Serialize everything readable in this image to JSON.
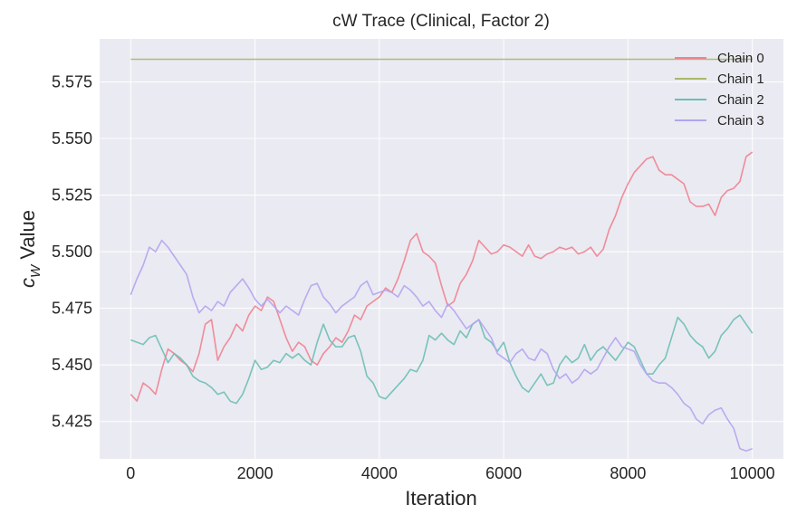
{
  "chart_data": {
    "type": "line",
    "title": "cW Trace (Clinical, Factor 2)",
    "xlabel": "Iteration",
    "ylabel_main": "c",
    "ylabel_sub": "W",
    "ylabel_rest": " Value",
    "xlim": [
      -500,
      10500
    ],
    "ylim": [
      5.4085,
      5.594
    ],
    "xticks": [
      0,
      2000,
      4000,
      6000,
      8000,
      10000
    ],
    "xtick_labels": [
      "0",
      "2000",
      "4000",
      "6000",
      "8000",
      "10000"
    ],
    "yticks": [
      5.425,
      5.45,
      5.475,
      5.5,
      5.525,
      5.55,
      5.575
    ],
    "ytick_labels": [
      "5.425",
      "5.450",
      "5.475",
      "5.500",
      "5.525",
      "5.550",
      "5.575"
    ],
    "grid": true,
    "legend_position": "top-right",
    "series": [
      {
        "name": "Chain 0",
        "color": "#f0828f",
        "x": [
          0,
          100,
          200,
          300,
          400,
          500,
          600,
          700,
          800,
          900,
          1000,
          1100,
          1200,
          1300,
          1400,
          1500,
          1600,
          1700,
          1800,
          1900,
          2000,
          2100,
          2200,
          2300,
          2400,
          2500,
          2600,
          2700,
          2800,
          2900,
          3000,
          3100,
          3200,
          3300,
          3400,
          3500,
          3600,
          3700,
          3800,
          3900,
          4000,
          4100,
          4200,
          4300,
          4400,
          4500,
          4600,
          4700,
          4800,
          4900,
          5000,
          5100,
          5200,
          5300,
          5400,
          5500,
          5600,
          5700,
          5800,
          5900,
          6000,
          6100,
          6200,
          6300,
          6400,
          6500,
          6600,
          6700,
          6800,
          6900,
          7000,
          7100,
          7200,
          7300,
          7400,
          7500,
          7600,
          7700,
          7800,
          7900,
          8000,
          8100,
          8200,
          8300,
          8400,
          8500,
          8600,
          8700,
          8800,
          8900,
          9000,
          9100,
          9200,
          9300,
          9400,
          9500,
          9600,
          9700,
          9800,
          9900,
          10000
        ],
        "y": [
          5.437,
          5.434,
          5.442,
          5.44,
          5.437,
          5.448,
          5.457,
          5.455,
          5.452,
          5.45,
          5.447,
          5.455,
          5.468,
          5.47,
          5.452,
          5.458,
          5.462,
          5.468,
          5.465,
          5.472,
          5.476,
          5.474,
          5.48,
          5.478,
          5.47,
          5.462,
          5.456,
          5.46,
          5.458,
          5.452,
          5.45,
          5.455,
          5.458,
          5.462,
          5.46,
          5.465,
          5.472,
          5.47,
          5.476,
          5.478,
          5.48,
          5.484,
          5.482,
          5.488,
          5.496,
          5.505,
          5.508,
          5.5,
          5.498,
          5.495,
          5.485,
          5.476,
          5.478,
          5.486,
          5.49,
          5.496,
          5.505,
          5.502,
          5.499,
          5.5,
          5.503,
          5.502,
          5.5,
          5.498,
          5.503,
          5.498,
          5.497,
          5.499,
          5.5,
          5.502,
          5.501,
          5.502,
          5.499,
          5.5,
          5.502,
          5.498,
          5.501,
          5.51,
          5.516,
          5.524,
          5.53,
          5.535,
          5.538,
          5.541,
          5.542,
          5.536,
          5.534,
          5.534,
          5.532,
          5.53,
          5.522,
          5.52,
          5.52,
          5.521,
          5.516,
          5.524,
          5.527,
          5.528,
          5.531,
          5.542,
          5.544
        ]
      },
      {
        "name": "Chain 1",
        "color": "#a9b86a",
        "x": [
          0,
          10000
        ],
        "y": [
          5.585,
          5.585
        ]
      },
      {
        "name": "Chain 2",
        "color": "#6bbfb4",
        "x": [
          0,
          100,
          200,
          300,
          400,
          500,
          600,
          700,
          800,
          900,
          1000,
          1100,
          1200,
          1300,
          1400,
          1500,
          1600,
          1700,
          1800,
          1900,
          2000,
          2100,
          2200,
          2300,
          2400,
          2500,
          2600,
          2700,
          2800,
          2900,
          3000,
          3100,
          3200,
          3300,
          3400,
          3500,
          3600,
          3700,
          3800,
          3900,
          4000,
          4100,
          4200,
          4300,
          4400,
          4500,
          4600,
          4700,
          4800,
          4900,
          5000,
          5100,
          5200,
          5300,
          5400,
          5500,
          5600,
          5700,
          5800,
          5900,
          6000,
          6100,
          6200,
          6300,
          6400,
          6500,
          6600,
          6700,
          6800,
          6900,
          7000,
          7100,
          7200,
          7300,
          7400,
          7500,
          7600,
          7700,
          7800,
          7900,
          8000,
          8100,
          8200,
          8300,
          8400,
          8500,
          8600,
          8700,
          8800,
          8900,
          9000,
          9100,
          9200,
          9300,
          9400,
          9500,
          9600,
          9700,
          9800,
          9900,
          10000
        ],
        "y": [
          5.461,
          5.46,
          5.459,
          5.462,
          5.463,
          5.457,
          5.451,
          5.455,
          5.453,
          5.45,
          5.445,
          5.443,
          5.442,
          5.44,
          5.437,
          5.438,
          5.434,
          5.433,
          5.437,
          5.444,
          5.452,
          5.448,
          5.449,
          5.452,
          5.451,
          5.455,
          5.453,
          5.455,
          5.452,
          5.45,
          5.46,
          5.468,
          5.461,
          5.458,
          5.458,
          5.462,
          5.463,
          5.456,
          5.445,
          5.442,
          5.436,
          5.435,
          5.438,
          5.441,
          5.444,
          5.448,
          5.447,
          5.452,
          5.463,
          5.461,
          5.464,
          5.461,
          5.459,
          5.465,
          5.462,
          5.468,
          5.47,
          5.462,
          5.46,
          5.456,
          5.46,
          5.451,
          5.445,
          5.44,
          5.438,
          5.442,
          5.446,
          5.441,
          5.442,
          5.45,
          5.454,
          5.451,
          5.453,
          5.459,
          5.452,
          5.456,
          5.458,
          5.455,
          5.452,
          5.456,
          5.46,
          5.458,
          5.452,
          5.446,
          5.446,
          5.45,
          5.453,
          5.462,
          5.471,
          5.468,
          5.463,
          5.46,
          5.458,
          5.453,
          5.456,
          5.463,
          5.466,
          5.47,
          5.472,
          5.468,
          5.464
        ]
      },
      {
        "name": "Chain 3",
        "color": "#b2a4f0",
        "x": [
          0,
          100,
          200,
          300,
          400,
          500,
          600,
          700,
          800,
          900,
          1000,
          1100,
          1200,
          1300,
          1400,
          1500,
          1600,
          1700,
          1800,
          1900,
          2000,
          2100,
          2200,
          2300,
          2400,
          2500,
          2600,
          2700,
          2800,
          2900,
          3000,
          3100,
          3200,
          3300,
          3400,
          3500,
          3600,
          3700,
          3800,
          3900,
          4000,
          4100,
          4200,
          4300,
          4400,
          4500,
          4600,
          4700,
          4800,
          4900,
          5000,
          5100,
          5200,
          5300,
          5400,
          5500,
          5600,
          5700,
          5800,
          5900,
          6000,
          6100,
          6200,
          6300,
          6400,
          6500,
          6600,
          6700,
          6800,
          6900,
          7000,
          7100,
          7200,
          7300,
          7400,
          7500,
          7600,
          7700,
          7800,
          7900,
          8000,
          8100,
          8200,
          8300,
          8400,
          8500,
          8600,
          8700,
          8800,
          8900,
          9000,
          9100,
          9200,
          9300,
          9400,
          9500,
          9600,
          9700,
          9800,
          9900,
          10000
        ],
        "y": [
          5.481,
          5.488,
          5.494,
          5.502,
          5.5,
          5.505,
          5.502,
          5.498,
          5.494,
          5.49,
          5.48,
          5.473,
          5.476,
          5.474,
          5.478,
          5.476,
          5.482,
          5.485,
          5.488,
          5.484,
          5.479,
          5.476,
          5.479,
          5.476,
          5.473,
          5.476,
          5.474,
          5.472,
          5.479,
          5.485,
          5.486,
          5.48,
          5.477,
          5.473,
          5.476,
          5.478,
          5.48,
          5.485,
          5.487,
          5.481,
          5.482,
          5.483,
          5.482,
          5.48,
          5.485,
          5.483,
          5.48,
          5.476,
          5.478,
          5.474,
          5.471,
          5.477,
          5.474,
          5.47,
          5.466,
          5.468,
          5.47,
          5.466,
          5.462,
          5.455,
          5.453,
          5.451,
          5.455,
          5.457,
          5.453,
          5.452,
          5.457,
          5.455,
          5.448,
          5.444,
          5.446,
          5.442,
          5.444,
          5.448,
          5.446,
          5.448,
          5.453,
          5.458,
          5.462,
          5.458,
          5.457,
          5.456,
          5.45,
          5.446,
          5.443,
          5.442,
          5.442,
          5.44,
          5.437,
          5.433,
          5.431,
          5.426,
          5.424,
          5.428,
          5.43,
          5.431,
          5.426,
          5.422,
          5.413,
          5.412,
          5.413
        ]
      }
    ]
  }
}
